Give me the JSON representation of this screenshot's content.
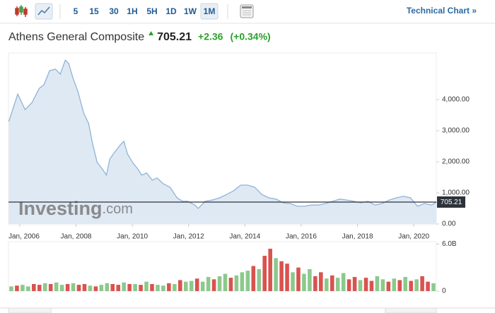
{
  "toolbar": {
    "intervals": [
      "5",
      "15",
      "30",
      "1H",
      "5H",
      "1D",
      "1W",
      "1M"
    ],
    "active": "1M",
    "link": "Technical Chart »"
  },
  "header": {
    "title": "Athens General Composite",
    "change": "+2.36",
    "change_pct": "(+0.34%)"
  },
  "watermark": {
    "brand": "Investing",
    "suffix": ".com"
  },
  "chart_data": [
    {
      "type": "area",
      "color": "#8fb3d6",
      "fill": "#dfe9f4",
      "last": 705.21,
      "last_color": "#2d333b",
      "x": [
        2005.61,
        2005.93,
        2006.19,
        2006.44,
        2006.69,
        2006.86,
        2007.06,
        2007.27,
        2007.44,
        2007.62,
        2007.74,
        2007.89,
        2008.07,
        2008.27,
        2008.45,
        2008.57,
        2008.75,
        2008.95,
        2009.08,
        2009.2,
        2009.38,
        2009.58,
        2009.7,
        2009.83,
        2010.01,
        2010.21,
        2010.33,
        2010.51,
        2010.71,
        2010.88,
        2011.09,
        2011.34,
        2011.59,
        2011.79,
        2011.97,
        2012.22,
        2012.34,
        2012.59,
        2012.84,
        2013.1,
        2013.35,
        2013.6,
        2013.85,
        2014.1,
        2014.35,
        2014.6,
        2014.85,
        2015.11,
        2015.36,
        2015.61,
        2015.86,
        2016.11,
        2016.36,
        2016.61,
        2016.86,
        2017.12,
        2017.37,
        2017.62,
        2017.87,
        2018.12,
        2018.37,
        2018.62,
        2018.87,
        2019.13,
        2019.38,
        2019.63,
        2019.88,
        2020.13,
        2020.38,
        2020.63,
        2020.81
      ],
      "values": [
        3300,
        4180,
        3680,
        3910,
        4360,
        4480,
        4930,
        4980,
        4820,
        5270,
        5160,
        4700,
        4250,
        3570,
        3230,
        2660,
        1980,
        1750,
        1570,
        2090,
        2320,
        2550,
        2660,
        2250,
        1980,
        1750,
        1570,
        1640,
        1410,
        1480,
        1300,
        1180,
        840,
        730,
        730,
        610,
        500,
        730,
        770,
        840,
        950,
        1070,
        1250,
        1250,
        1180,
        950,
        840,
        800,
        680,
        660,
        570,
        570,
        610,
        610,
        660,
        730,
        800,
        770,
        730,
        680,
        730,
        610,
        660,
        770,
        840,
        890,
        840,
        570,
        660,
        610,
        705.21
      ],
      "xlim": [
        2005.6,
        2020.8
      ],
      "xticks": [
        {
          "value": 2006,
          "label": "Jan, 2006"
        },
        {
          "value": 2008,
          "label": "Jan, 2008"
        },
        {
          "value": 2010,
          "label": "Jan, 2010"
        },
        {
          "value": 2012,
          "label": "Jan, 2012"
        },
        {
          "value": 2014,
          "label": "Jan, 2014"
        },
        {
          "value": 2016,
          "label": "Jan, 2016"
        },
        {
          "value": 2018,
          "label": "Jan, 2018"
        },
        {
          "value": 2020,
          "label": "Jan, 2020"
        }
      ],
      "ylim": [
        0,
        5500
      ],
      "yticks": [
        {
          "value": 0,
          "label": "0.00"
        },
        {
          "value": 1000,
          "label": "1,000.00"
        },
        {
          "value": 2000,
          "label": "2,000.00"
        },
        {
          "value": 3000,
          "label": "3,000.00"
        },
        {
          "value": 4000,
          "label": "4,000.00"
        }
      ]
    },
    {
      "type": "bar",
      "x": [
        2005.7,
        2005.9,
        2006.1,
        2006.3,
        2006.5,
        2006.7,
        2006.9,
        2007.1,
        2007.3,
        2007.5,
        2007.7,
        2007.9,
        2008.1,
        2008.3,
        2008.5,
        2008.7,
        2008.9,
        2009.1,
        2009.3,
        2009.5,
        2009.7,
        2009.9,
        2010.1,
        2010.3,
        2010.5,
        2010.7,
        2010.9,
        2011.1,
        2011.3,
        2011.5,
        2011.7,
        2011.9,
        2012.1,
        2012.3,
        2012.5,
        2012.7,
        2012.9,
        2013.1,
        2013.3,
        2013.5,
        2013.7,
        2013.9,
        2014.1,
        2014.3,
        2014.5,
        2014.7,
        2014.9,
        2015.1,
        2015.3,
        2015.5,
        2015.7,
        2015.9,
        2016.1,
        2016.3,
        2016.5,
        2016.7,
        2016.9,
        2017.1,
        2017.3,
        2017.5,
        2017.7,
        2017.9,
        2018.1,
        2018.3,
        2018.5,
        2018.7,
        2018.9,
        2019.1,
        2019.3,
        2019.5,
        2019.7,
        2019.9,
        2020.1,
        2020.3,
        2020.5,
        2020.7
      ],
      "values": [
        0.6,
        0.7,
        0.8,
        0.6,
        0.9,
        0.8,
        1.0,
        0.9,
        1.1,
        0.8,
        0.9,
        1.0,
        0.8,
        0.9,
        0.7,
        0.6,
        0.8,
        1.0,
        0.9,
        0.8,
        1.1,
        0.9,
        0.9,
        0.8,
        1.2,
        0.9,
        0.8,
        0.7,
        1.0,
        0.9,
        1.4,
        1.2,
        1.3,
        1.6,
        1.2,
        1.8,
        1.5,
        1.9,
        2.2,
        1.7,
        2.0,
        2.4,
        2.6,
        3.2,
        2.8,
        4.5,
        5.4,
        4.2,
        3.8,
        3.5,
        2.4,
        3.0,
        2.2,
        2.8,
        1.9,
        2.4,
        1.6,
        2.0,
        1.7,
        2.3,
        1.5,
        1.8,
        1.4,
        1.7,
        1.3,
        1.9,
        1.5,
        1.2,
        1.6,
        1.4,
        1.8,
        1.3,
        1.5,
        1.9,
        1.2,
        1.0
      ],
      "colors": [
        "#8cc98c",
        "#d9534f",
        "#8cc98c",
        "#8cc98c",
        "#d9534f",
        "#d9534f",
        "#8cc98c",
        "#d9534f",
        "#8cc98c",
        "#8cc98c",
        "#d9534f",
        "#8cc98c",
        "#d9534f",
        "#d9534f",
        "#8cc98c",
        "#d9534f",
        "#8cc98c",
        "#8cc98c",
        "#d9534f",
        "#d9534f",
        "#8cc98c",
        "#d9534f",
        "#8cc98c",
        "#d9534f",
        "#8cc98c",
        "#d9534f",
        "#8cc98c",
        "#8cc98c",
        "#d9534f",
        "#8cc98c",
        "#d9534f",
        "#8cc98c",
        "#8cc98c",
        "#d9534f",
        "#8cc98c",
        "#8cc98c",
        "#d9534f",
        "#8cc98c",
        "#8cc98c",
        "#d9534f",
        "#8cc98c",
        "#8cc98c",
        "#8cc98c",
        "#d9534f",
        "#8cc98c",
        "#d9534f",
        "#d9534f",
        "#8cc98c",
        "#d9534f",
        "#d9534f",
        "#8cc98c",
        "#d9534f",
        "#8cc98c",
        "#8cc98c",
        "#d9534f",
        "#d9534f",
        "#8cc98c",
        "#d9534f",
        "#8cc98c",
        "#8cc98c",
        "#d9534f",
        "#d9534f",
        "#8cc98c",
        "#d9534f",
        "#d9534f",
        "#8cc98c",
        "#8cc98c",
        "#d9534f",
        "#8cc98c",
        "#d9534f",
        "#8cc98c",
        "#d9534f",
        "#8cc98c",
        "#d9534f",
        "#d9534f",
        "#8cc98c"
      ],
      "xlim": [
        2005.6,
        2020.8
      ],
      "ylim": [
        0,
        6.3
      ],
      "yticks": [
        0,
        {
          "value": 6,
          "label": "6.0B"
        }
      ]
    }
  ]
}
